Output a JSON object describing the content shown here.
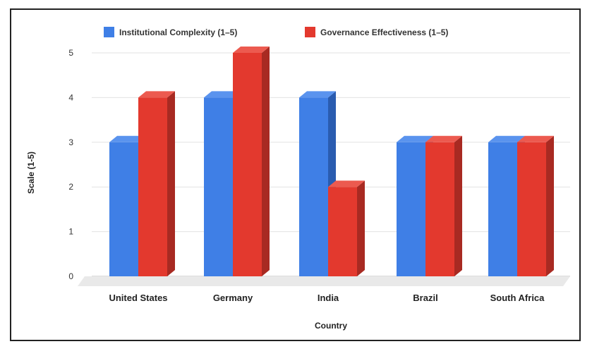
{
  "chart_data": {
    "type": "bar",
    "title": "",
    "xlabel": "Country",
    "ylabel": "Scale (1-5)",
    "categories": [
      "United States",
      "Germany",
      "India",
      "Brazil",
      "South Africa"
    ],
    "series": [
      {
        "name": "Institutional Complexity (1–5)",
        "values": [
          3,
          4,
          4,
          3,
          3
        ],
        "color": "#3f7fe6",
        "side_color": "#2a5cb0",
        "top_color": "#5a93ee"
      },
      {
        "name": "Governance Effectiveness (1–5)",
        "values": [
          4,
          5,
          2,
          3,
          3
        ],
        "color": "#e3392e",
        "side_color": "#a82a22",
        "top_color": "#ec5a4f"
      }
    ],
    "ylim": [
      0,
      5
    ],
    "yticks": [
      "0",
      "1",
      "2",
      "3",
      "4",
      "5"
    ],
    "grid": true,
    "legend_position": "top",
    "style": "3d"
  }
}
